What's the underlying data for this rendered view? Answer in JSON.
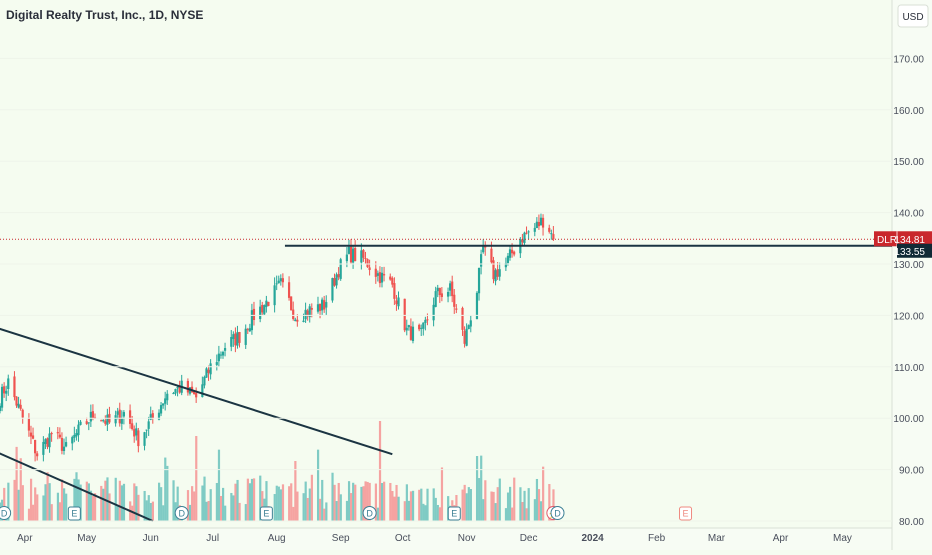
{
  "chart_title": "Digital Realty Trust, Inc., 1D, NYSE",
  "currency": "USD",
  "colors": {
    "background": "#f5fcf0",
    "up": "#26a69a",
    "down": "#ef5350",
    "up_volume": "#7fcbc4",
    "down_volume": "#f5a3a1",
    "line": "#1b3442",
    "price_tag": "#c9272c",
    "level_tag": "#102a36"
  },
  "chart_data": {
    "type": "candlestick",
    "ylim": [
      80,
      180
    ],
    "y_ticks": [
      80,
      90,
      100,
      110,
      120,
      130,
      140,
      150,
      160,
      170
    ],
    "x_ticks": [
      "Apr",
      "May",
      "Jun",
      "Jul",
      "Aug",
      "Sep",
      "Oct",
      "Nov",
      "Dec",
      "2024",
      "Feb",
      "Mar",
      "Apr",
      "May"
    ],
    "x_range": [
      "2023-03-20",
      "2024-05-25"
    ],
    "series": [
      {
        "name": "price",
        "close_path": [
          [
            "2023-03-20",
            104
          ],
          [
            "2023-03-24",
            107
          ],
          [
            "2023-03-31",
            100
          ],
          [
            "2023-04-07",
            93
          ],
          [
            "2023-04-14",
            97
          ],
          [
            "2023-04-21",
            94
          ],
          [
            "2023-04-28",
            98
          ],
          [
            "2023-05-05",
            101
          ],
          [
            "2023-05-12",
            99
          ],
          [
            "2023-05-19",
            101
          ],
          [
            "2023-05-26",
            96
          ],
          [
            "2023-06-02",
            100
          ],
          [
            "2023-06-09",
            105
          ],
          [
            "2023-06-16",
            106
          ],
          [
            "2023-06-23",
            104
          ],
          [
            "2023-06-30",
            110
          ],
          [
            "2023-07-07",
            114
          ],
          [
            "2023-07-14",
            116
          ],
          [
            "2023-07-21",
            120
          ],
          [
            "2023-07-28",
            123
          ],
          [
            "2023-08-03",
            126
          ],
          [
            "2023-08-10",
            120
          ],
          [
            "2023-08-17",
            121
          ],
          [
            "2023-08-24",
            122
          ],
          [
            "2023-08-31",
            129
          ],
          [
            "2023-09-05",
            132
          ],
          [
            "2023-09-12",
            131
          ],
          [
            "2023-09-19",
            128
          ],
          [
            "2023-09-26",
            126
          ],
          [
            "2023-10-03",
            117
          ],
          [
            "2023-10-10",
            116
          ],
          [
            "2023-10-17",
            124
          ],
          [
            "2023-10-24",
            125
          ],
          [
            "2023-10-31",
            115
          ],
          [
            "2023-11-06",
            125
          ],
          [
            "2023-11-09",
            133
          ],
          [
            "2023-11-14",
            128
          ],
          [
            "2023-11-20",
            130
          ],
          [
            "2023-11-27",
            135
          ],
          [
            "2023-12-04",
            137
          ],
          [
            "2023-12-09",
            139
          ],
          [
            "2023-12-13",
            134.81
          ]
        ]
      },
      {
        "name": "volume",
        "spikes": [
          [
            "2023-06-23",
            85
          ],
          [
            "2023-08-10",
            60
          ],
          [
            "2023-09-20",
            100
          ],
          [
            "2023-11-06",
            65
          ],
          [
            "2023-12-02",
            70
          ]
        ]
      }
    ],
    "lines": [
      {
        "type": "horizontal",
        "value": 133.55,
        "from": "2023-08-05",
        "to": "2024-05-25"
      },
      {
        "type": "trendline",
        "start": [
          "2023-03-15",
          118
        ],
        "end": [
          "2023-09-26",
          93
        ]
      },
      {
        "type": "trendline",
        "start": [
          "2023-03-15",
          94
        ],
        "end": [
          "2023-06-02",
          80
        ]
      }
    ],
    "events": [
      {
        "date": "2023-03-22",
        "label": "D"
      },
      {
        "date": "2023-04-25",
        "label": "E"
      },
      {
        "date": "2023-06-16",
        "label": "D"
      },
      {
        "date": "2023-07-27",
        "label": "E"
      },
      {
        "date": "2023-09-15",
        "label": "D"
      },
      {
        "date": "2023-10-26",
        "label": "E"
      },
      {
        "date": "2023-12-13",
        "label": "⚡"
      },
      {
        "date": "2023-12-15",
        "label": "D"
      },
      {
        "date": "2024-02-15",
        "label": "E"
      }
    ],
    "price_labels": [
      {
        "name": "DLR",
        "value": "134.81"
      },
      {
        "name": "",
        "value": "133.55"
      }
    ]
  }
}
